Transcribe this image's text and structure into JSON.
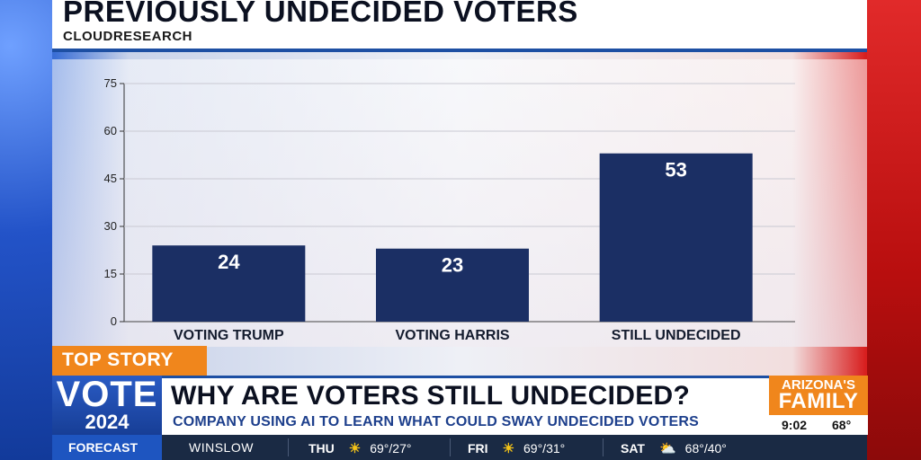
{
  "header": {
    "title": "PREVIOUSLY UNDECIDED VOTERS",
    "source": "CLOUDRESEARCH"
  },
  "chart_data": {
    "type": "bar",
    "categories": [
      "VOTING TRUMP",
      "VOTING HARRIS",
      "STILL UNDECIDED"
    ],
    "values": [
      24,
      23,
      53
    ],
    "data_labels": [
      "24",
      "23",
      "53"
    ],
    "yticks": [
      "0",
      "15",
      "30",
      "45",
      "60",
      "75"
    ],
    "ylim": [
      0,
      75
    ],
    "grid": true,
    "bar_color": "#1b2f64"
  },
  "lower_third": {
    "tag": "TOP STORY",
    "vote_word": "VOTE",
    "vote_year": "2024",
    "headline": "WHY ARE VOTERS STILL UNDECIDED?",
    "subheadline": "COMPANY USING AI TO LEARN WHAT COULD SWAY UNDECIDED VOTERS",
    "logo_top": "ARIZONA'S",
    "logo_bottom": "FAMILY",
    "time": "9:02",
    "temperature": "68°",
    "accent_color": "#f0861c"
  },
  "forecast": {
    "label": "FORECAST",
    "city": "WINSLOW",
    "days": [
      {
        "day": "THU",
        "icon": "sun-icon",
        "temps": "69°/27°"
      },
      {
        "day": "FRI",
        "icon": "sun-icon",
        "temps": "69°/31°"
      },
      {
        "day": "SAT",
        "icon": "partly-cloudy-icon",
        "temps": "68°/40°"
      }
    ]
  }
}
